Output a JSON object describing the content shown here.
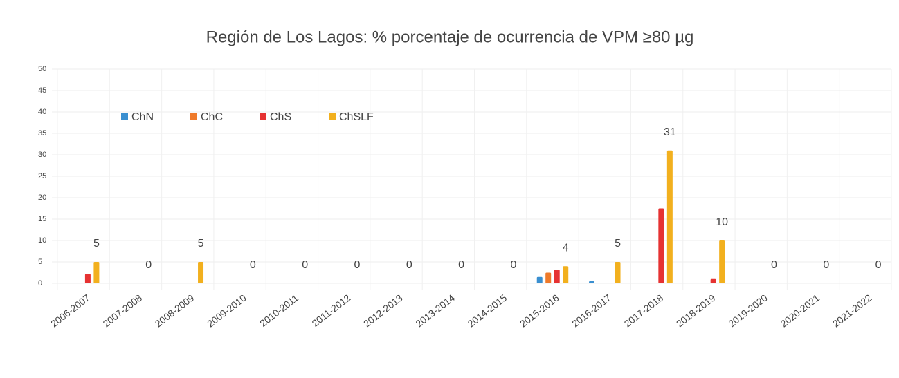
{
  "chart_data": {
    "type": "bar",
    "title": "Región de Los Lagos: % porcentaje de ocurrencia de VPM ≥80 µg",
    "categories": [
      "2006-2007",
      "2007-2008",
      "2008-2009",
      "2009-2010",
      "2010-2011",
      "2011-2012",
      "2012-2013",
      "2013-2014",
      "2014-2015",
      "2015-2016",
      "2016-2017",
      "2017-2018",
      "2018-2019",
      "2019-2020",
      "2020-2021",
      "2021-2022"
    ],
    "series": [
      {
        "name": "ChN",
        "color": "#3a8fd0",
        "values": [
          0,
          0,
          0,
          0,
          0,
          0,
          0,
          0,
          0,
          1.5,
          0.5,
          0,
          0,
          0,
          0,
          0
        ]
      },
      {
        "name": "ChC",
        "color": "#ef7a2a",
        "values": [
          0,
          0,
          0,
          0,
          0,
          0,
          0,
          0,
          0,
          2.5,
          0,
          0,
          0,
          0,
          0,
          0
        ]
      },
      {
        "name": "ChS",
        "color": "#e63232",
        "values": [
          2.2,
          0,
          0,
          0,
          0,
          0,
          0,
          0,
          0,
          3.2,
          0,
          17.5,
          1,
          0,
          0,
          0
        ]
      },
      {
        "name": "ChSLF",
        "color": "#f2b01e",
        "values": [
          5,
          0,
          5,
          0,
          0,
          0,
          0,
          0,
          0,
          4,
          5,
          31,
          10,
          0,
          0,
          0
        ]
      }
    ],
    "ylim": [
      0,
      50
    ],
    "yticks": [
      0,
      5,
      10,
      15,
      20,
      25,
      30,
      35,
      40,
      45,
      50
    ],
    "grid": true,
    "legend": "top-left"
  }
}
